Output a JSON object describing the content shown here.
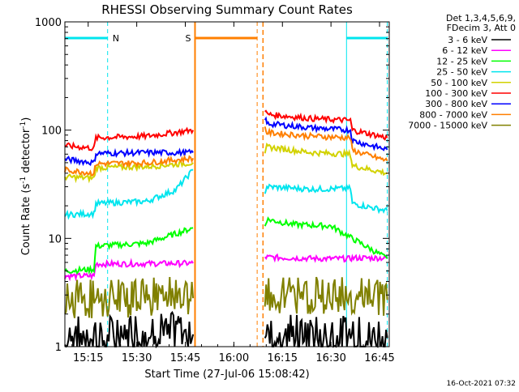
{
  "chart_data": {
    "type": "line",
    "title": "RHESSI Observing Summary Count Rates",
    "xlabel": "Start Time (27-Jul-06 15:08:42)",
    "ylabel_main": "Count Rate (s",
    "ylabel_sup1": "-1",
    "ylabel_mid": " detector",
    "ylabel_sup2": "-1",
    "ylabel_end": ")",
    "y_scale": "log",
    "ylim": [
      1,
      1000
    ],
    "xlim_minutes": [
      15.13,
      16.8
    ],
    "x_ticks": [
      {
        "t": 15.25,
        "label": "15:15"
      },
      {
        "t": 15.5,
        "label": "15:30"
      },
      {
        "t": 15.75,
        "label": "15:45"
      },
      {
        "t": 16.0,
        "label": "16:00"
      },
      {
        "t": 16.25,
        "label": "16:15"
      },
      {
        "t": 16.5,
        "label": "16:30"
      },
      {
        "t": 16.75,
        "label": "16:45"
      }
    ],
    "y_ticks": [
      {
        "v": 1,
        "label": "1"
      },
      {
        "v": 10,
        "label": "10"
      },
      {
        "v": 100,
        "label": "100"
      },
      {
        "v": 1000,
        "label": "1000"
      }
    ],
    "legend_header": [
      "Det 1,3,4,5,6,9,",
      "FDecim 3, Att 0"
    ],
    "legend_placement": "right",
    "footer": "16-Oct-2021 07:32",
    "gaps": [
      {
        "start": 15.8,
        "end": 16.15,
        "type": "saa"
      }
    ],
    "flags": [
      {
        "label": "N",
        "start": 15.13,
        "end": 15.35,
        "color": "#00e5ee"
      },
      {
        "label": "S",
        "start": 15.8,
        "end": 16.12,
        "color": "#ff7f00"
      },
      {
        "label": "",
        "start": 16.58,
        "end": 16.79,
        "color": "#00e5ee"
      }
    ],
    "series": [
      {
        "name": "3 - 6 keV",
        "color": "#000000",
        "segments": [
          {
            "t": [
              15.13,
              15.35,
              15.55,
              15.79
            ],
            "v": [
              1.2,
              1.2,
              1.3,
              1.3
            ],
            "spiky": true
          },
          {
            "t": [
              16.16,
              16.45,
              16.79
            ],
            "v": [
              1.3,
              1.2,
              1.2
            ],
            "spiky": true
          }
        ]
      },
      {
        "name": "6 - 12 keV",
        "color": "#ff00ff",
        "segments": [
          {
            "t": [
              15.13,
              15.28,
              15.29,
              15.79
            ],
            "v": [
              4.5,
              4.5,
              5.8,
              5.9
            ],
            "spiky": false
          },
          {
            "t": [
              16.16,
              16.45,
              16.6,
              16.61,
              16.79
            ],
            "v": [
              6.7,
              6.5,
              6.5,
              6.6,
              6.6
            ],
            "spiky": false
          }
        ]
      },
      {
        "name": "12 - 25 keV",
        "color": "#00ff00",
        "segments": [
          {
            "t": [
              15.13,
              15.28,
              15.29,
              15.55,
              15.79
            ],
            "v": [
              5.0,
              5.2,
              8.5,
              9.0,
              12.5
            ],
            "spiky": false
          },
          {
            "t": [
              16.16,
              16.17,
              16.3,
              16.5,
              16.79
            ],
            "v": [
              13.0,
              15.0,
              13.5,
              13.0,
              6.5
            ],
            "spiky": false
          }
        ]
      },
      {
        "name": "25 - 50 keV",
        "color": "#00e5ee",
        "segments": [
          {
            "t": [
              15.13,
              15.28,
              15.29,
              15.55,
              15.7,
              15.79
            ],
            "v": [
              16.5,
              17.0,
              21.0,
              22.0,
              28.0,
              43.0
            ],
            "spiky": false
          },
          {
            "t": [
              16.16,
              16.17,
              16.4,
              16.6,
              16.61,
              16.79
            ],
            "v": [
              27.0,
              30.0,
              28.5,
              29.0,
              21.0,
              18.0
            ],
            "spiky": false
          }
        ]
      },
      {
        "name": "50 - 100 keV",
        "color": "#d2d200",
        "segments": [
          {
            "t": [
              15.13,
              15.28,
              15.29,
              15.55,
              15.79
            ],
            "v": [
              37.0,
              36.0,
              45.0,
              46.0,
              50.0
            ],
            "spiky": false
          },
          {
            "t": [
              16.16,
              16.17,
              16.4,
              16.6,
              16.61,
              16.79
            ],
            "v": [
              58.0,
              70.0,
              62.0,
              60.0,
              47.0,
              40.0
            ],
            "spiky": false
          }
        ]
      },
      {
        "name": "100 - 300 keV",
        "color": "#ff0000",
        "segments": [
          {
            "t": [
              15.13,
              15.28,
              15.29,
              15.55,
              15.79
            ],
            "v": [
              72.0,
              68.0,
              85.0,
              88.0,
              100.0
            ],
            "spiky": false
          },
          {
            "t": [
              16.16,
              16.17,
              16.4,
              16.6,
              16.61,
              16.79
            ],
            "v": [
              155.0,
              140.0,
              128.0,
              123.0,
              100.0,
              85.0
            ],
            "spiky": false
          }
        ]
      },
      {
        "name": "300 - 800 keV",
        "color": "#0000ff",
        "segments": [
          {
            "t": [
              15.13,
              15.28,
              15.29,
              15.55,
              15.79
            ],
            "v": [
              54.0,
              50.0,
              61.0,
              62.0,
              62.0
            ],
            "spiky": false
          },
          {
            "t": [
              16.16,
              16.17,
              16.4,
              16.6,
              16.61,
              16.79
            ],
            "v": [
              130.0,
              115.0,
              105.0,
              100.0,
              80.0,
              66.0
            ],
            "spiky": false
          }
        ]
      },
      {
        "name": "800 - 7000 keV",
        "color": "#ff7f00",
        "segments": [
          {
            "t": [
              15.13,
              15.28,
              15.29,
              15.55,
              15.79
            ],
            "v": [
              43.0,
              40.0,
              49.0,
              50.0,
              55.0
            ],
            "spiky": false
          },
          {
            "t": [
              16.16,
              16.17,
              16.4,
              16.6,
              16.61,
              16.79
            ],
            "v": [
              105.0,
              95.0,
              88.0,
              85.0,
              65.0,
              52.0
            ],
            "spiky": false
          }
        ]
      },
      {
        "name": "7000 - 15000 keV",
        "color": "#808000",
        "segments": [
          {
            "t": [
              15.13,
              15.35,
              15.55,
              15.79
            ],
            "v": [
              2.6,
              2.6,
              2.7,
              2.8
            ],
            "spiky": true
          },
          {
            "t": [
              16.16,
              16.45,
              16.79
            ],
            "v": [
              2.7,
              2.8,
              2.7
            ],
            "spiky": true
          }
        ]
      }
    ]
  }
}
